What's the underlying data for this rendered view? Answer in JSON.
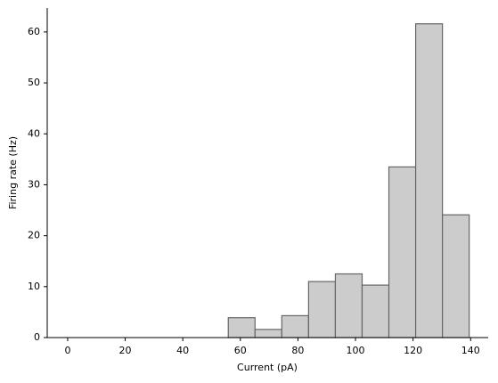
{
  "chart_data": {
    "type": "histogram",
    "x_label": "Current (pA)",
    "y_label": "Firing rate (Hz)",
    "bins": [
      0,
      9.3,
      18.6,
      27.9,
      37.2,
      46.5,
      55.8,
      65.1,
      74.4,
      83.7,
      93,
      102.3,
      111.6,
      120.9,
      130.2,
      139.5
    ],
    "values": [
      0,
      0,
      0,
      0,
      0,
      0,
      3.9,
      1.6,
      4.3,
      11,
      12.5,
      10.3,
      33.5,
      61.6,
      24.1
    ],
    "color": "#cccccc",
    "edgecolor": "#666666",
    "xlim": [
      -7.1,
      146.1
    ],
    "xticks": [
      0,
      20,
      40,
      60,
      80,
      100,
      120,
      140
    ],
    "ylim": [
      0,
      64.7
    ],
    "yticks": [
      0,
      10,
      20,
      30,
      40,
      50,
      60
    ],
    "grid": false
  }
}
